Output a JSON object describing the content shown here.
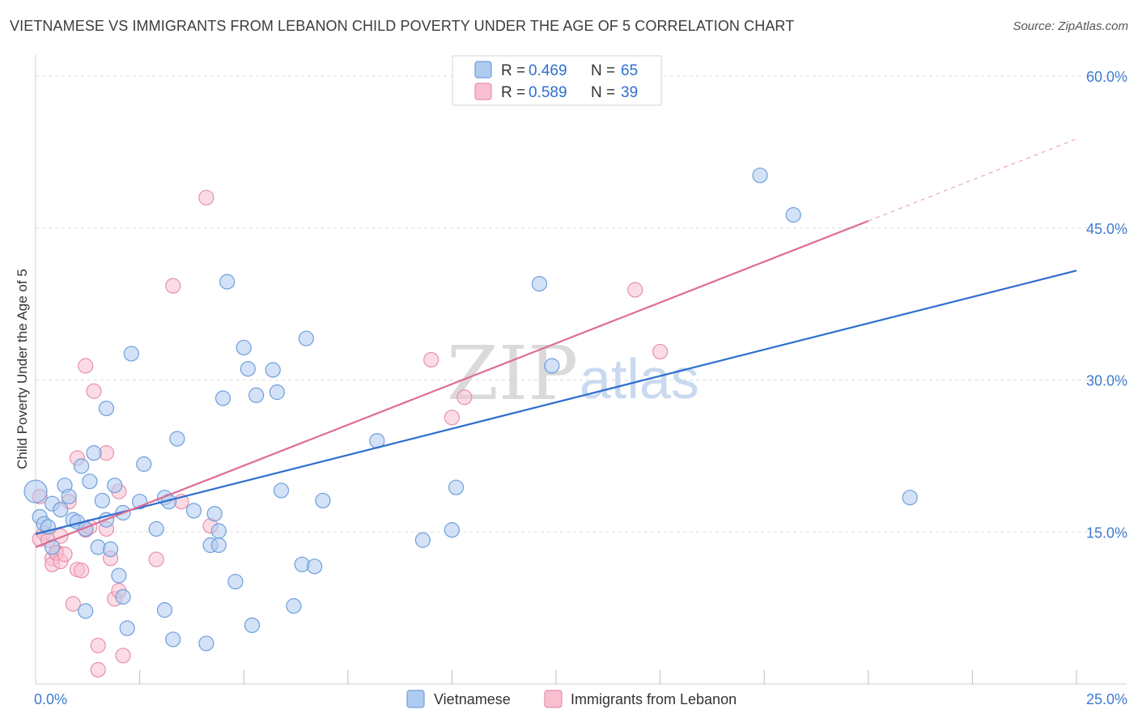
{
  "header": {
    "title": "VIETNAMESE VS IMMIGRANTS FROM LEBANON CHILD POVERTY UNDER THE AGE OF 5 CORRELATION CHART",
    "source": "Source: ZipAtlas.com"
  },
  "watermark": {
    "zip": "ZIP",
    "atlas": "atlas"
  },
  "legend": {
    "r_label": "R =",
    "n_label": "N =",
    "items": [
      {
        "r": "0.469",
        "n": "65"
      },
      {
        "r": "0.589",
        "n": "39"
      }
    ]
  },
  "bottom_legend": [
    "Vietnamese",
    "Immigrants from Lebanon"
  ],
  "colors": {
    "blue_fill": "#aecbf0",
    "blue_stroke": "#6f9fdc",
    "blue_line": "#2f6fce",
    "pink_fill": "#f7bfd0",
    "pink_stroke": "#e890ab",
    "pink_line": "#df6b94",
    "tick_text": "#3d7bd1",
    "grid": "#dddddd"
  },
  "chart_data": {
    "type": "scatter",
    "title": "VIETNAMESE VS IMMIGRANTS FROM LEBANON CHILD POVERTY UNDER THE AGE OF 5 CORRELATION CHART",
    "xlabel": "",
    "ylabel": "Child Poverty Under the Age of 5",
    "xlim": [
      0,
      25
    ],
    "ylim": [
      0,
      60
    ],
    "x_tick_labels": [
      "0.0%",
      "25.0%"
    ],
    "y_ticks": [
      15,
      30,
      45,
      60
    ],
    "y_tick_labels": [
      "15.0%",
      "30.0%",
      "45.0%",
      "60.0%"
    ],
    "grid": true,
    "legend_position": "top-center",
    "series": [
      {
        "name": "Vietnamese",
        "color": "#aecbf0",
        "points": [
          [
            0.0,
            19.0
          ],
          [
            0.1,
            16.5
          ],
          [
            0.2,
            15.8
          ],
          [
            0.3,
            15.5
          ],
          [
            0.4,
            13.5
          ],
          [
            0.4,
            17.8
          ],
          [
            0.6,
            17.2
          ],
          [
            0.7,
            19.6
          ],
          [
            0.8,
            18.5
          ],
          [
            0.9,
            16.2
          ],
          [
            1.0,
            16.0
          ],
          [
            1.1,
            21.5
          ],
          [
            1.2,
            15.3
          ],
          [
            1.2,
            7.2
          ],
          [
            1.3,
            20.0
          ],
          [
            1.4,
            22.8
          ],
          [
            1.5,
            13.5
          ],
          [
            1.6,
            18.1
          ],
          [
            1.7,
            16.2
          ],
          [
            1.7,
            27.2
          ],
          [
            1.8,
            13.3
          ],
          [
            1.9,
            19.6
          ],
          [
            2.0,
            10.7
          ],
          [
            2.1,
            8.6
          ],
          [
            2.1,
            16.9
          ],
          [
            2.2,
            5.5
          ],
          [
            2.3,
            32.6
          ],
          [
            2.5,
            18.0
          ],
          [
            2.6,
            21.7
          ],
          [
            2.9,
            15.3
          ],
          [
            3.1,
            7.3
          ],
          [
            3.1,
            18.4
          ],
          [
            3.2,
            18.0
          ],
          [
            3.3,
            4.4
          ],
          [
            3.4,
            24.2
          ],
          [
            3.8,
            17.1
          ],
          [
            4.1,
            4.0
          ],
          [
            4.2,
            13.7
          ],
          [
            4.3,
            16.8
          ],
          [
            4.4,
            15.1
          ],
          [
            4.4,
            13.7
          ],
          [
            4.5,
            28.2
          ],
          [
            4.6,
            39.7
          ],
          [
            4.8,
            10.1
          ],
          [
            5.0,
            33.2
          ],
          [
            5.1,
            31.1
          ],
          [
            5.2,
            5.8
          ],
          [
            5.3,
            28.5
          ],
          [
            5.7,
            31.0
          ],
          [
            5.8,
            28.8
          ],
          [
            5.9,
            19.1
          ],
          [
            6.2,
            7.7
          ],
          [
            6.4,
            11.8
          ],
          [
            6.5,
            34.1
          ],
          [
            6.7,
            11.6
          ],
          [
            6.9,
            18.1
          ],
          [
            8.2,
            24.0
          ],
          [
            9.3,
            14.2
          ],
          [
            10.0,
            15.2
          ],
          [
            10.1,
            19.4
          ],
          [
            12.1,
            39.5
          ],
          [
            12.4,
            31.4
          ],
          [
            17.4,
            50.2
          ],
          [
            18.2,
            46.3
          ],
          [
            21.0,
            18.4
          ]
        ]
      },
      {
        "name": "Immigrants from Lebanon",
        "color": "#f7bfd0",
        "points": [
          [
            0.1,
            18.5
          ],
          [
            0.1,
            14.3
          ],
          [
            0.2,
            14.9
          ],
          [
            0.3,
            14.2
          ],
          [
            0.4,
            12.4
          ],
          [
            0.4,
            11.8
          ],
          [
            0.5,
            13.0
          ],
          [
            0.5,
            12.9
          ],
          [
            0.6,
            14.6
          ],
          [
            0.6,
            12.1
          ],
          [
            0.7,
            12.8
          ],
          [
            0.8,
            18.0
          ],
          [
            0.9,
            7.9
          ],
          [
            1.0,
            22.3
          ],
          [
            1.0,
            11.3
          ],
          [
            1.1,
            11.2
          ],
          [
            1.2,
            31.4
          ],
          [
            1.2,
            15.2
          ],
          [
            1.3,
            15.5
          ],
          [
            1.4,
            28.9
          ],
          [
            1.5,
            3.8
          ],
          [
            1.5,
            1.4
          ],
          [
            1.7,
            22.8
          ],
          [
            1.7,
            15.3
          ],
          [
            1.8,
            12.4
          ],
          [
            1.9,
            8.4
          ],
          [
            2.0,
            9.2
          ],
          [
            2.0,
            19.0
          ],
          [
            2.1,
            2.8
          ],
          [
            2.9,
            12.3
          ],
          [
            3.3,
            39.3
          ],
          [
            3.5,
            18.0
          ],
          [
            4.1,
            48.0
          ],
          [
            4.2,
            15.6
          ],
          [
            9.5,
            32.0
          ],
          [
            10.0,
            26.3
          ],
          [
            10.3,
            28.3
          ],
          [
            14.4,
            38.9
          ],
          [
            15.0,
            32.8
          ]
        ]
      }
    ],
    "trendlines": [
      {
        "series": "Vietnamese",
        "x": [
          0,
          25
        ],
        "y": [
          14.8,
          40.8
        ]
      },
      {
        "series": "Immigrants from Lebanon",
        "x": [
          0,
          20
        ],
        "y": [
          13.5,
          45.7
        ],
        "dashed_extension_to": [
          25,
          53.8
        ]
      }
    ]
  }
}
